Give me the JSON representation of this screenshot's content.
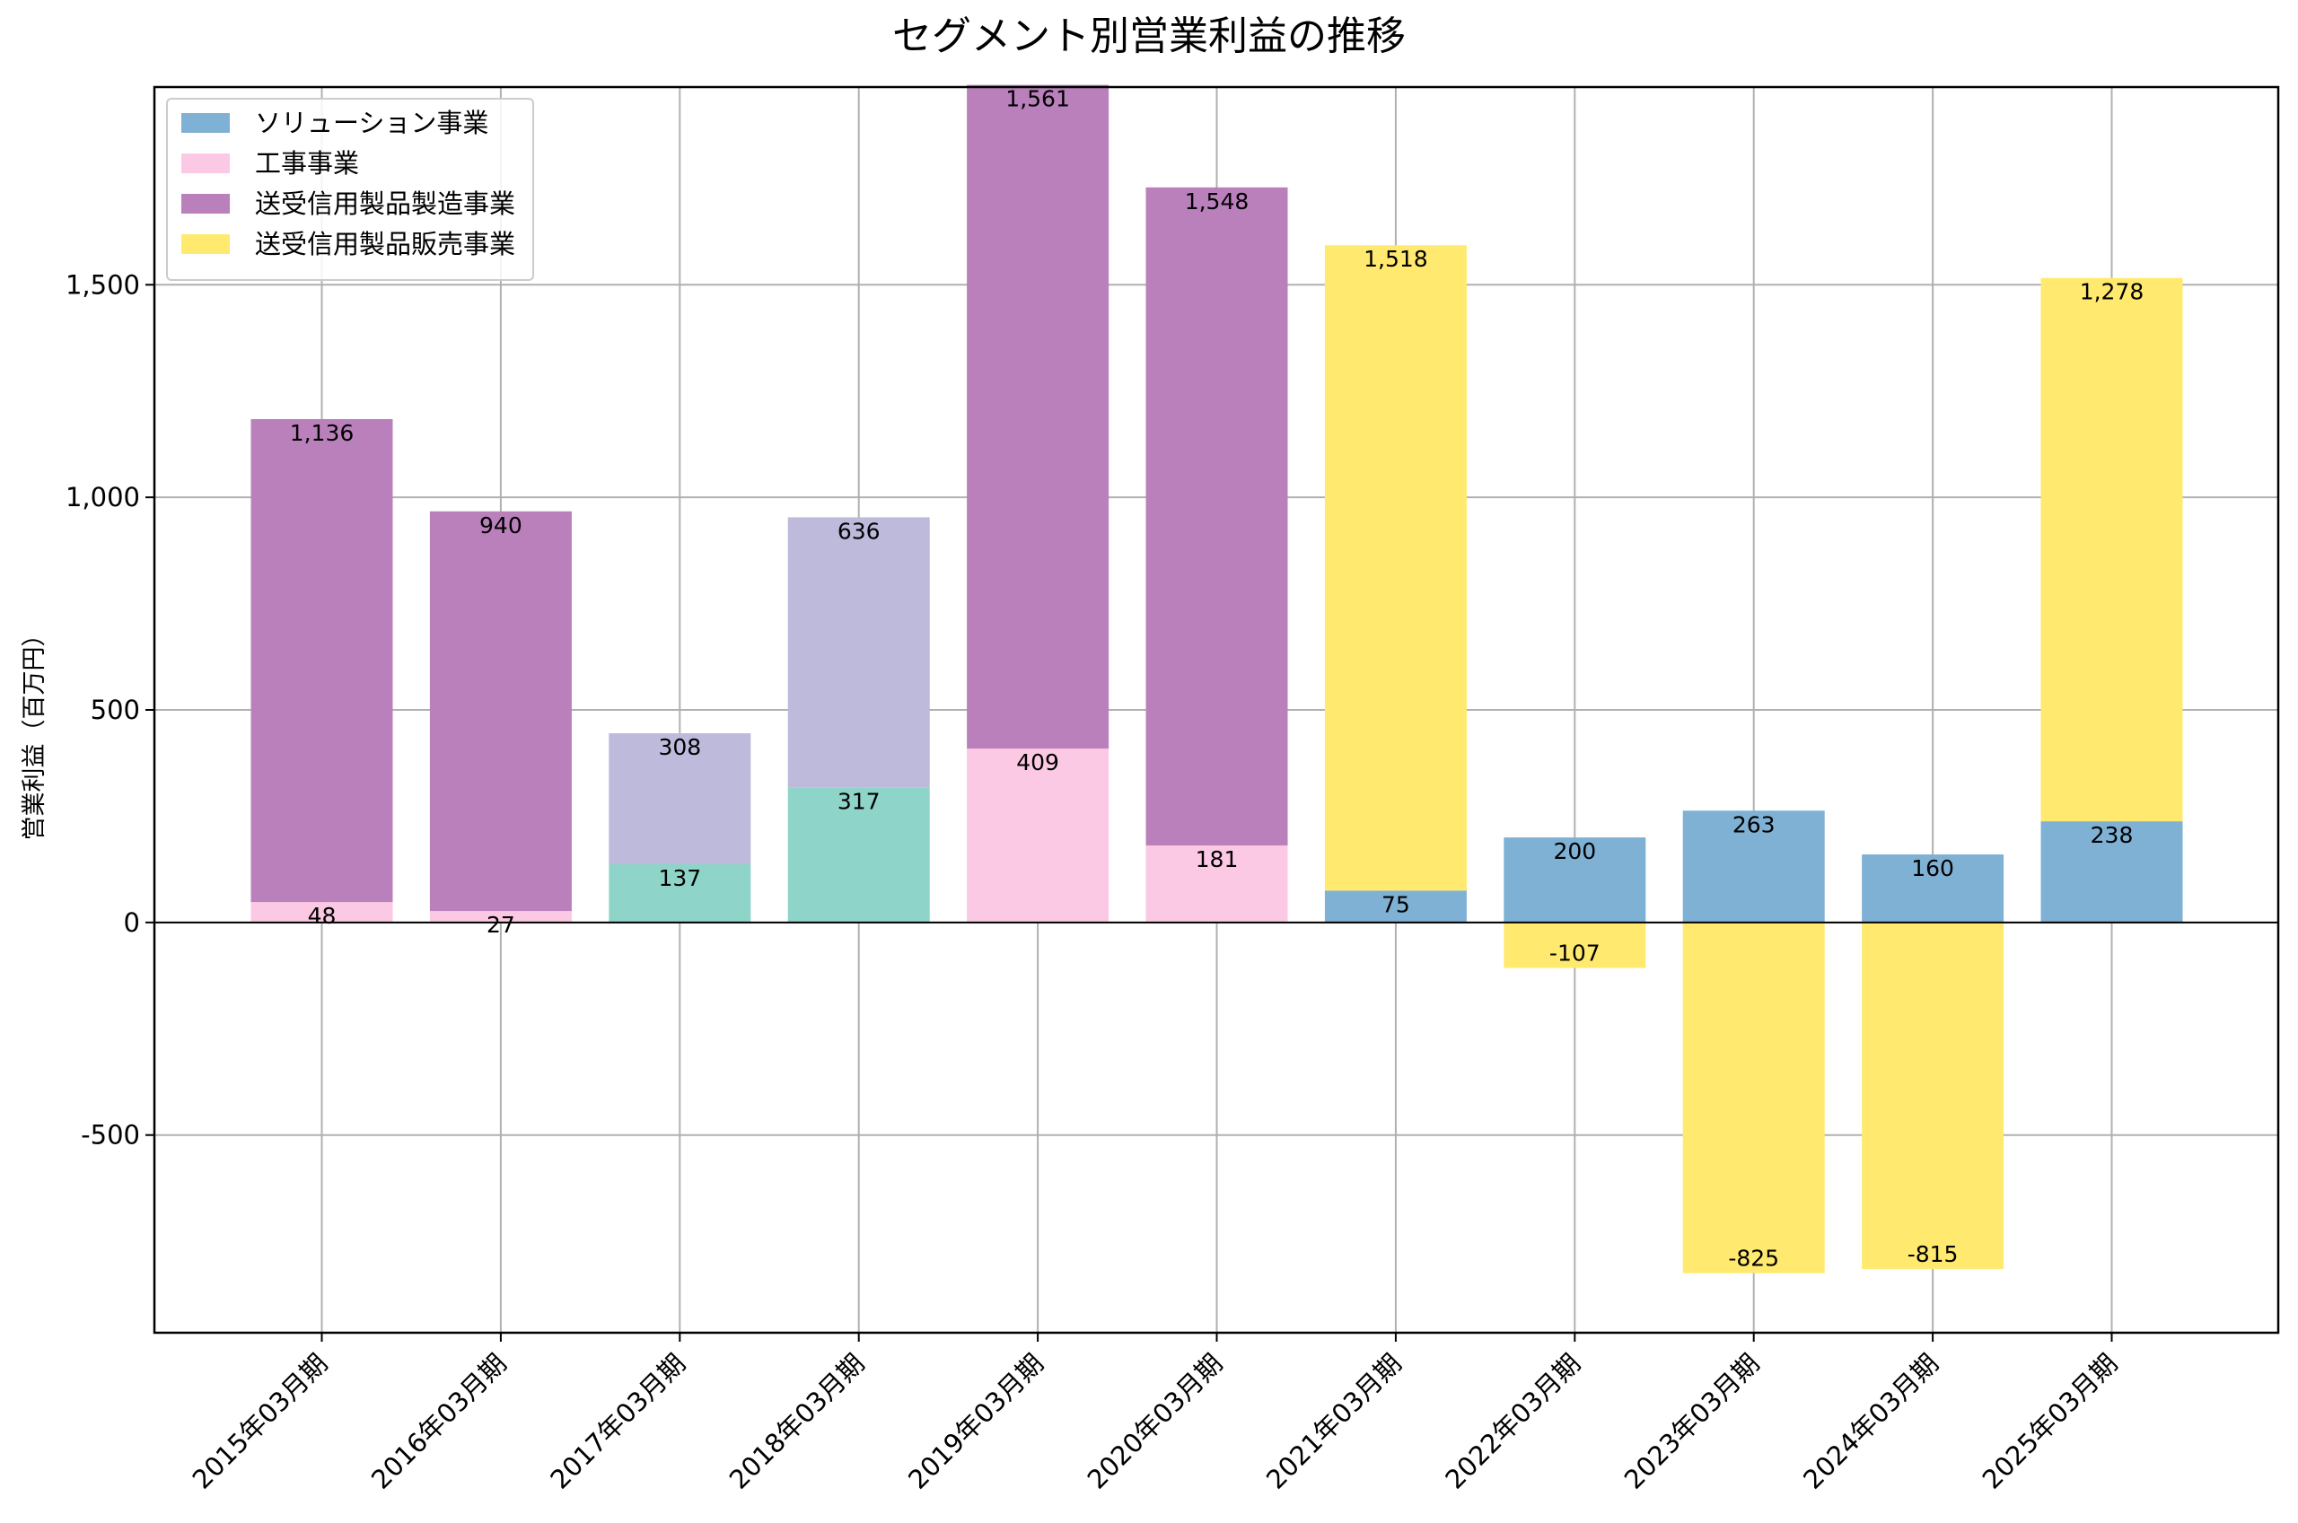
{
  "chart_data": {
    "type": "bar",
    "stacked": true,
    "title": "セグメント別営業利益の推移",
    "ylabel": "営業利益（百万円）",
    "xlabel": "",
    "ylim": [
      -965,
      1965
    ],
    "yticks": [
      -500,
      0,
      500,
      1000,
      1500
    ],
    "ytick_labels": [
      "-500",
      "0",
      "500",
      "1,000",
      "1,500"
    ],
    "grid": true,
    "legend_position": "upper-left",
    "categories": [
      "2015年03月期",
      "2016年03月期",
      "2017年03月期",
      "2018年03月期",
      "2019年03月期",
      "2020年03月期",
      "2021年03月期",
      "2022年03月期",
      "2023年03月期",
      "2024年03月期",
      "2025年03月期"
    ],
    "series": [
      {
        "name": "ソリューション事業",
        "color": "#7fb1d4",
        "values": [
          null,
          null,
          null,
          null,
          null,
          null,
          75,
          200,
          263,
          160,
          238
        ],
        "labels": [
          "",
          "",
          "",
          "",
          "",
          "",
          "75",
          "200",
          "263",
          "160",
          "238"
        ],
        "legend": true
      },
      {
        "name": "工事事業",
        "color": "#fbc9e3",
        "values": [
          48,
          27,
          null,
          null,
          409,
          181,
          null,
          null,
          null,
          null,
          null
        ],
        "labels": [
          "48",
          "27",
          "",
          "",
          "409",
          "181",
          "",
          "",
          "",
          "",
          ""
        ],
        "legend": true
      },
      {
        "name": "送受信用製品製造事業",
        "color": "#ba80bb",
        "values": [
          1136,
          940,
          null,
          null,
          1561,
          1548,
          null,
          null,
          null,
          null,
          null
        ],
        "labels": [
          "1,136",
          "940",
          "",
          "",
          "1,561",
          "1,548",
          "",
          "",
          "",
          "",
          ""
        ],
        "legend": true
      },
      {
        "name": "送受信用製品販売事業",
        "color": "#ffea6f",
        "values": [
          null,
          null,
          null,
          null,
          null,
          null,
          1518,
          -107,
          -825,
          -815,
          1278
        ],
        "labels": [
          "",
          "",
          "",
          "",
          "",
          "",
          "1,518",
          "-107",
          "-825",
          "-815",
          "1,278"
        ],
        "legend": true
      },
      {
        "name": "",
        "color": "#8fd4c8",
        "values": [
          null,
          null,
          137,
          317,
          null,
          null,
          null,
          null,
          null,
          null,
          null
        ],
        "labels": [
          "",
          "",
          "137",
          "317",
          "",
          "",
          "",
          "",
          "",
          "",
          ""
        ],
        "legend": false
      },
      {
        "name": "",
        "color": "#bdbadb",
        "values": [
          null,
          null,
          308,
          636,
          null,
          null,
          null,
          null,
          null,
          null,
          null
        ],
        "labels": [
          "",
          "",
          "308",
          "636",
          "",
          "",
          "",
          "",
          "",
          "",
          ""
        ],
        "legend": false
      }
    ]
  }
}
